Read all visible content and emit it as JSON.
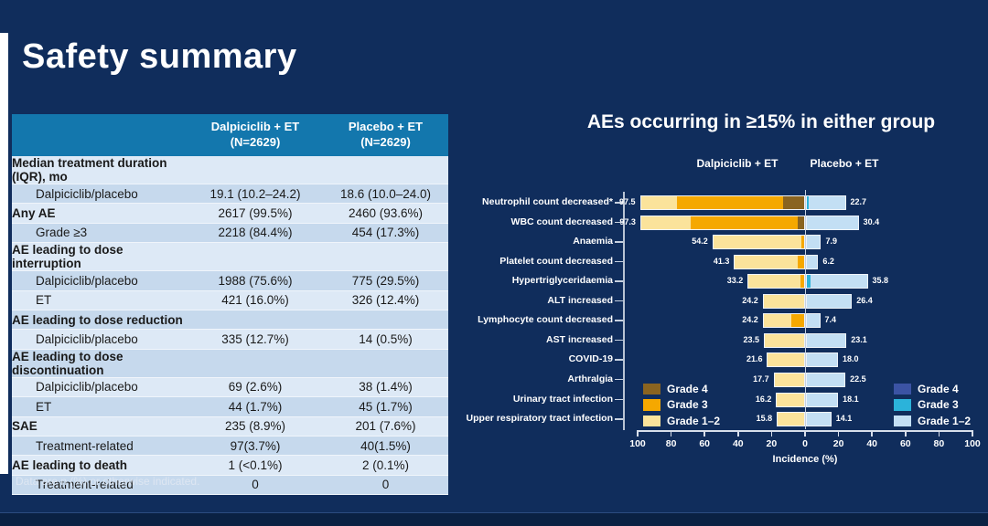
{
  "slide": {
    "title": "Safety summary",
    "footnote": "Data are n (%) or otherwise indicated."
  },
  "table": {
    "header": [
      {
        "name": "Dalpiciclib + ET",
        "n": "(N=2629)"
      },
      {
        "name": "Placebo + ET",
        "n": "(N=2629)"
      }
    ],
    "rows": [
      {
        "label": "Median treatment duration (IQR), mo",
        "dalpiciclib": "",
        "placebo": "",
        "bold": true,
        "indent": false
      },
      {
        "label": "Dalpiciclib/placebo",
        "dalpiciclib": "19.1 (10.2–24.2)",
        "placebo": "18.6 (10.0–24.0)",
        "bold": false,
        "indent": true
      },
      {
        "label": "Any AE",
        "dalpiciclib": "2617 (99.5%)",
        "placebo": "2460 (93.6%)",
        "bold": true,
        "indent": false
      },
      {
        "label": "Grade ≥3",
        "dalpiciclib": "2218 (84.4%)",
        "placebo": "454 (17.3%)",
        "bold": false,
        "indent": true
      },
      {
        "label": "AE leading to dose interruption",
        "dalpiciclib": "",
        "placebo": "",
        "bold": true,
        "indent": false
      },
      {
        "label": "Dalpiciclib/placebo",
        "dalpiciclib": "1988 (75.6%)",
        "placebo": "775 (29.5%)",
        "bold": false,
        "indent": true
      },
      {
        "label": "ET",
        "dalpiciclib": "421 (16.0%)",
        "placebo": "326 (12.4%)",
        "bold": false,
        "indent": true
      },
      {
        "label": "AE leading to dose reduction",
        "dalpiciclib": "",
        "placebo": "",
        "bold": true,
        "indent": false
      },
      {
        "label": "Dalpiciclib/placebo",
        "dalpiciclib": "335 (12.7%)",
        "placebo": "14 (0.5%)",
        "bold": false,
        "indent": true
      },
      {
        "label": "AE leading to dose discontinuation",
        "dalpiciclib": "",
        "placebo": "",
        "bold": true,
        "indent": false
      },
      {
        "label": "Dalpiciclib/placebo",
        "dalpiciclib": "69 (2.6%)",
        "placebo": "38 (1.4%)",
        "bold": false,
        "indent": true
      },
      {
        "label": "ET",
        "dalpiciclib": "44 (1.7%)",
        "placebo": "45 (1.7%)",
        "bold": false,
        "indent": true
      },
      {
        "label": "SAE",
        "dalpiciclib": "235 (8.9%)",
        "placebo": "201 (7.6%)",
        "bold": true,
        "indent": false
      },
      {
        "label": "Treatment-related",
        "dalpiciclib": "97(3.7%)",
        "placebo": "40(1.5%)",
        "bold": false,
        "indent": true
      },
      {
        "label": "AE leading to death",
        "dalpiciclib": "1 (<0.1%)",
        "placebo": "2 (0.1%)",
        "bold": true,
        "indent": false
      },
      {
        "label": "Treatment-related",
        "dalpiciclib": "0",
        "placebo": "0",
        "bold": false,
        "indent": true
      }
    ]
  },
  "chart_data": {
    "type": "bar",
    "subtype": "diverging stacked butterfly, incidence by toxicity grade",
    "title": "AEs occurring in ≥15% in either group",
    "group_left": "Dalpiciclib + ET",
    "group_right": "Placebo + ET",
    "xlabel": "Incidence (%)",
    "xmax": 100,
    "axis_ticks": [
      "100",
      "80",
      "60",
      "40",
      "20",
      "0",
      "20",
      "40",
      "60",
      "80",
      "100"
    ],
    "palette_left": {
      "g12": "#FBE39B",
      "g3": "#F5A800",
      "g4": "#8A6420"
    },
    "palette_right": {
      "g12": "#C3DFF4",
      "g3": "#2BB3DA",
      "g4": "#3B53A4"
    },
    "legend_left": [
      {
        "grade": "g4",
        "label": "Grade 4"
      },
      {
        "grade": "g3",
        "label": "Grade 3"
      },
      {
        "grade": "g12",
        "label": "Grade 1–2"
      }
    ],
    "legend_right": [
      {
        "grade": "g4",
        "label": "Grade 4"
      },
      {
        "grade": "g3",
        "label": "Grade 3"
      },
      {
        "grade": "g12",
        "label": "Grade 1–2"
      }
    ],
    "segment_order_note": "left_segments listed outer-tip to zero-line; right_segments listed zero-line to outer-tip",
    "rows": [
      {
        "label": "Neutrophil count decreased*",
        "left_total": "97.5",
        "right_total": "22.7",
        "left_segments": [
          {
            "grade": "g12",
            "value": 21.3
          },
          {
            "grade": "g3",
            "value": 63.4
          },
          {
            "grade": "g4",
            "value": 12.8
          }
        ],
        "right_segments": [
          {
            "grade": "g3",
            "value": 1.2
          },
          {
            "grade": "g12",
            "value": 21.5
          }
        ]
      },
      {
        "label": "WBC count decreased",
        "left_total": "97.3",
        "right_total": "30.4",
        "left_segments": [
          {
            "grade": "g12",
            "value": 29.5
          },
          {
            "grade": "g3",
            "value": 63.9
          },
          {
            "grade": "g4",
            "value": 3.9
          }
        ],
        "right_segments": [
          {
            "grade": "g12",
            "value": 30.4
          }
        ]
      },
      {
        "label": "Anaemia",
        "left_total": "54.2",
        "right_total": "7.9",
        "left_segments": [
          {
            "grade": "g12",
            "value": 52.4
          },
          {
            "grade": "g3",
            "value": 1.8
          }
        ],
        "right_segments": [
          {
            "grade": "g12",
            "value": 7.9
          }
        ]
      },
      {
        "label": "Platelet count decreased",
        "left_total": "41.3",
        "right_total": "6.2",
        "left_segments": [
          {
            "grade": "g12",
            "value": 37.7
          },
          {
            "grade": "g3",
            "value": 3.6
          }
        ],
        "right_segments": [
          {
            "grade": "g12",
            "value": 6.2
          }
        ]
      },
      {
        "label": "Hypertriglyceridaemia",
        "left_total": "33.2",
        "right_total": "35.8",
        "left_segments": [
          {
            "grade": "g12",
            "value": 30.8
          },
          {
            "grade": "g3",
            "value": 2.4
          }
        ],
        "right_segments": [
          {
            "grade": "g3",
            "value": 2.2
          },
          {
            "grade": "g12",
            "value": 33.6
          }
        ]
      },
      {
        "label": "ALT increased",
        "left_total": "24.2",
        "right_total": "26.4",
        "left_segments": [
          {
            "grade": "g12",
            "value": 24.2
          }
        ],
        "right_segments": [
          {
            "grade": "g12",
            "value": 26.4
          }
        ]
      },
      {
        "label": "Lymphocyte count decreased",
        "left_total": "24.2",
        "right_total": "7.4",
        "left_segments": [
          {
            "grade": "g12",
            "value": 16.6
          },
          {
            "grade": "g3",
            "value": 7.6
          }
        ],
        "right_segments": [
          {
            "grade": "g12",
            "value": 7.4
          }
        ]
      },
      {
        "label": "AST increased",
        "left_total": "23.5",
        "right_total": "23.1",
        "left_segments": [
          {
            "grade": "g12",
            "value": 23.5
          }
        ],
        "right_segments": [
          {
            "grade": "g12",
            "value": 23.1
          }
        ]
      },
      {
        "label": "COVID-19",
        "left_total": "21.6",
        "right_total": "18.0",
        "left_segments": [
          {
            "grade": "g12",
            "value": 21.6
          }
        ],
        "right_segments": [
          {
            "grade": "g12",
            "value": 18.0
          }
        ]
      },
      {
        "label": "Arthralgia",
        "left_total": "17.7",
        "right_total": "22.5",
        "left_segments": [
          {
            "grade": "g12",
            "value": 17.7
          }
        ],
        "right_segments": [
          {
            "grade": "g12",
            "value": 22.5
          }
        ]
      },
      {
        "label": "Urinary tract infection",
        "left_total": "16.2",
        "right_total": "18.1",
        "left_segments": [
          {
            "grade": "g12",
            "value": 16.2
          }
        ],
        "right_segments": [
          {
            "grade": "g12",
            "value": 18.1
          }
        ]
      },
      {
        "label": "Upper respiratory tract infection",
        "left_total": "15.8",
        "right_total": "14.1",
        "left_segments": [
          {
            "grade": "g12",
            "value": 15.8
          }
        ],
        "right_segments": [
          {
            "grade": "g12",
            "value": 14.1
          }
        ]
      }
    ]
  }
}
